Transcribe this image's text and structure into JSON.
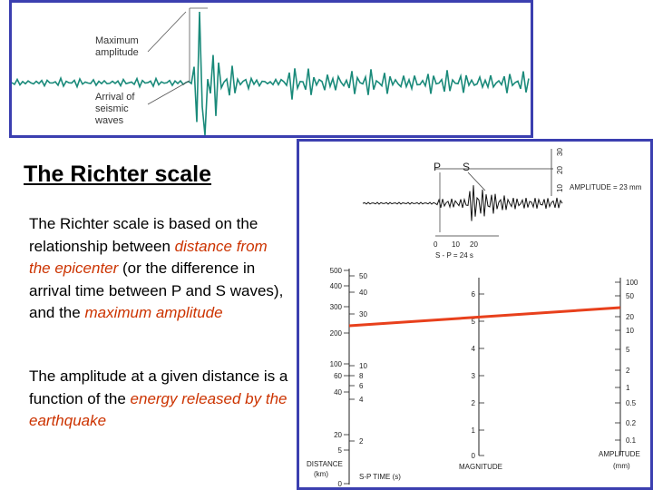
{
  "seismogram": {
    "max_amplitude_label": [
      "Maximum",
      "amplitude"
    ],
    "arrival_label": [
      "Arrival of",
      "seismic",
      "waves"
    ]
  },
  "slide": {
    "title": "The Richter scale",
    "para1": {
      "t1": "The Richter scale is based on the relationship between ",
      "h1": "distance from the epicenter",
      "t2": " (or the difference in arrival time between P and S waves), and the ",
      "h2": "maximum amplitude"
    },
    "para2": {
      "t1": "The amplitude at a given distance is a function of the ",
      "h1": "energy released by the earthquake"
    }
  },
  "nomogram": {
    "record_labels": {
      "p": "P",
      "s": "S",
      "amplitude": "AMPLITUDE = 23 mm",
      "sp_interval": "S - P = 24 s",
      "time_ticks": [
        "0",
        "10",
        "20"
      ],
      "amp_ticks": [
        "10",
        "20",
        "30"
      ]
    },
    "distance_ticks": [
      "500",
      "400",
      "300",
      "200",
      "100",
      "60",
      "40",
      "20",
      "5",
      "0"
    ],
    "sp_ticks": [
      "50",
      "40",
      "30",
      "10",
      "8",
      "6",
      "4",
      "2"
    ],
    "magnitude_ticks": [
      "6",
      "5",
      "4",
      "3",
      "2",
      "1",
      "0"
    ],
    "amplitude_ticks": [
      "100",
      "50",
      "20",
      "10",
      "5",
      "2",
      "1",
      "0.5",
      "0.2",
      "0.1"
    ],
    "axis_labels": {
      "distance": "DISTANCE",
      "distance_unit": "(km)",
      "sp_time": "S-P TIME (s)",
      "magnitude": "MAGNITUDE",
      "amplitude": "AMPLITUDE",
      "amplitude_unit": "(mm)"
    },
    "line_color": "#e8401c"
  },
  "colors": {
    "panel_border": "#3b3fb0",
    "wave": "#1a8a7a",
    "highlight": "#cc3300"
  }
}
